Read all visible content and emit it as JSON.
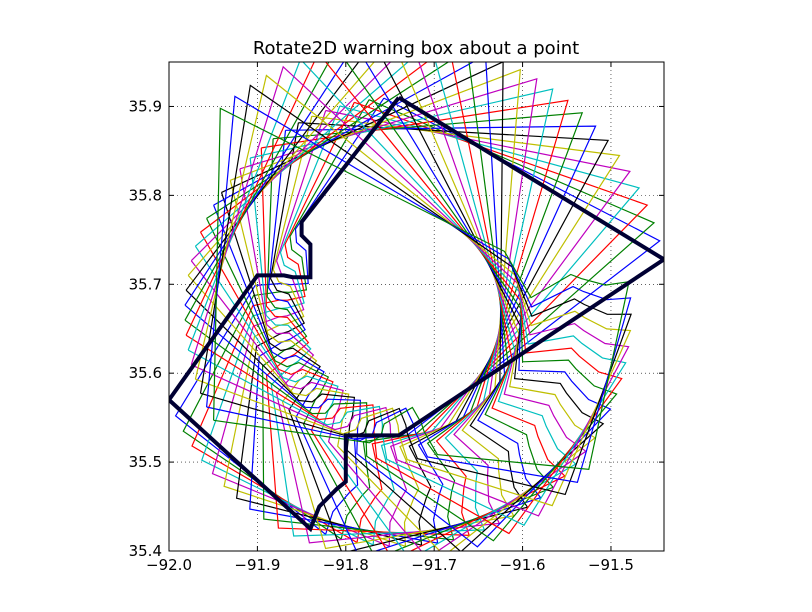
{
  "chart_data": {
    "type": "line",
    "title": "Rotate2D warning box about a point",
    "xlabel": "",
    "ylabel": "",
    "xlim": [
      -92.0,
      -91.44
    ],
    "ylim": [
      35.4,
      35.95
    ],
    "xticks": [
      -92.0,
      -91.9,
      -91.8,
      -91.7,
      -91.6,
      -91.5
    ],
    "xtick_labels": [
      "−92.0",
      "−91.9",
      "−91.8",
      "−91.7",
      "−91.6",
      "−91.5"
    ],
    "yticks": [
      35.4,
      35.5,
      35.6,
      35.7,
      35.8,
      35.9
    ],
    "ytick_labels": [
      "35.4",
      "35.5",
      "35.6",
      "35.7",
      "35.8",
      "35.9"
    ],
    "grid": true,
    "grid_style": "dotted",
    "legend": "none",
    "pivot": {
      "x": -91.74,
      "y": 35.668
    },
    "rotation_step_deg": 4,
    "rotation_count": 30,
    "colors": [
      "#0000ff",
      "#008000",
      "#ff0000",
      "#00bfbf",
      "#bf00bf",
      "#bfbf00",
      "#000000"
    ],
    "original_polygon": {
      "x": [
        -91.74,
        -91.44,
        -91.74,
        -91.79,
        -91.8,
        -91.8,
        -91.81,
        -91.83,
        -91.84,
        -92.0,
        -91.9,
        -91.87,
        -91.86,
        -91.84,
        -91.84,
        -91.85,
        -91.85,
        -91.74
      ],
      "y": [
        35.91,
        35.728,
        35.53,
        35.53,
        35.53,
        35.478,
        35.47,
        35.45,
        35.425,
        35.57,
        35.71,
        35.71,
        35.708,
        35.708,
        35.745,
        35.755,
        35.77,
        35.91
      ]
    },
    "original_style": {
      "color": "#000033",
      "linewidth": 4
    }
  }
}
